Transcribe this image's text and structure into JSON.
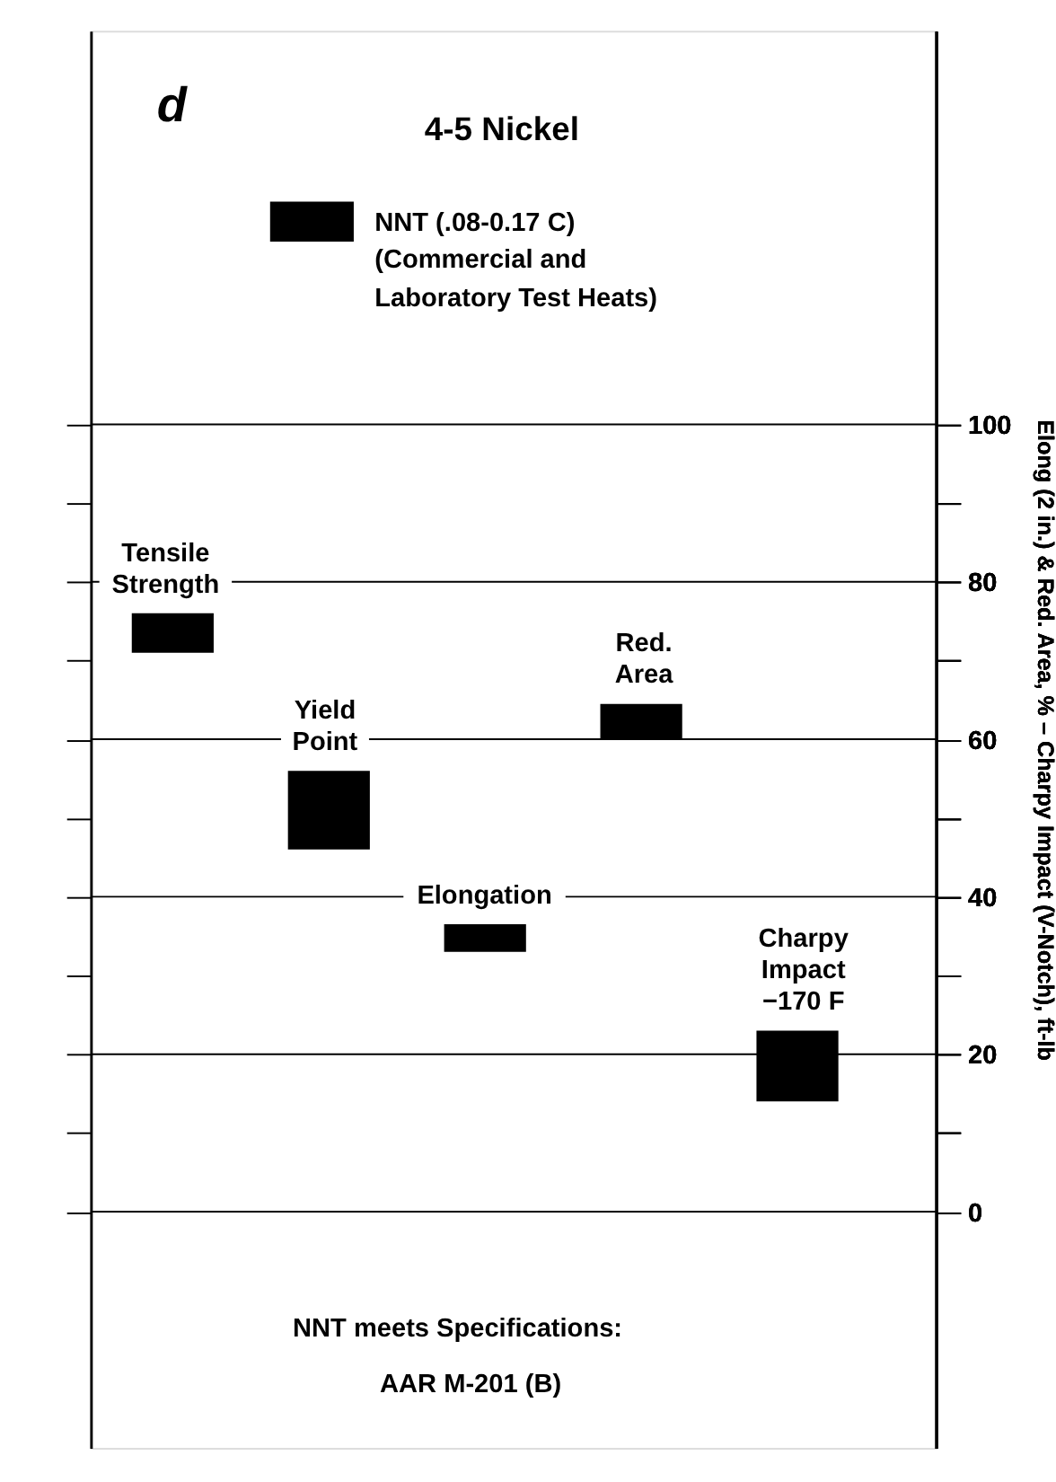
{
  "chart_data": {
    "type": "bar",
    "title": "4-5 Nickel",
    "categories": [
      "Tensile\nStrength",
      "Yield\nPoint",
      "Elongation",
      "Red.\nArea",
      "Charpy\nImpact\n−170 F"
    ],
    "series": [
      {
        "name": "NNT (.08-0.17 C)",
        "color": "#000000",
        "base": [
          71,
          46,
          33,
          60,
          14
        ],
        "values": [
          5,
          10,
          3.5,
          4.5,
          9
        ]
      }
    ],
    "ylabel": "Elong (2 in.) & Red. Area, % – Charpy Impact (V-Notch), ft-lb",
    "ylim": [
      -30,
      150
    ],
    "yticks": [
      0,
      {
        "value": 10,
        "label": null
      },
      20,
      {
        "value": 30,
        "label": null
      },
      40,
      {
        "value": 50,
        "label": null
      },
      60,
      {
        "value": 70,
        "label": null
      },
      80,
      {
        "value": 90,
        "label": null
      },
      100
    ],
    "grid": "y",
    "legend": "top",
    "annotations": [
      "d",
      "(Commercial and\nLaboratory Test Heats)",
      "NNT meets Specifications:",
      "AAR M-201 (B)"
    ]
  }
}
